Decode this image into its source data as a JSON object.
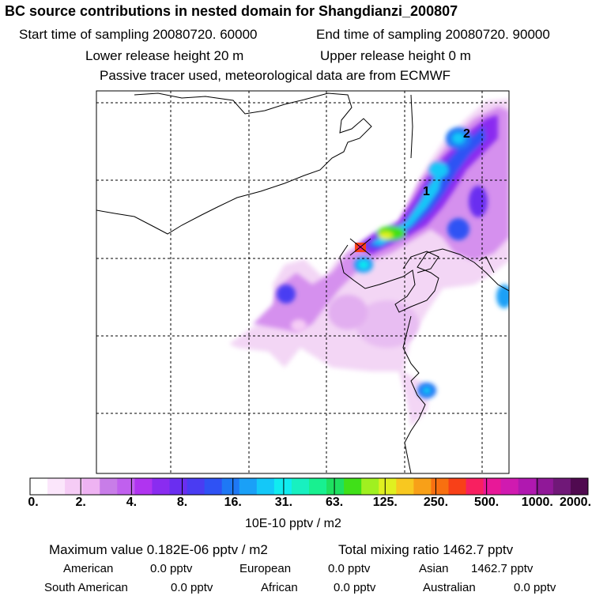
{
  "header": {
    "title": "BC  source contributions in nested domain for Shangdianzi_200807",
    "start_label": "Start time of sampling 20080720. 60000",
    "end_label": "End time of sampling 20080720. 90000",
    "lower_label": "Lower release height   20 m",
    "upper_label": "Upper release height    0 m",
    "note": "Passive tracer used, meteorological data are from ECMWF"
  },
  "map": {
    "markers": [
      "1",
      "2"
    ]
  },
  "colorbar": {
    "colors": [
      "#ffffff",
      "#fbe6fb",
      "#f5ccf5",
      "#eeb3f2",
      "#c87de8",
      "#c060ee",
      "#b034f0",
      "#8a2cf0",
      "#6a2ef0",
      "#4a3cf2",
      "#2f52f4",
      "#1e78f5",
      "#1aa0f7",
      "#14c8f8",
      "#10ecf0",
      "#18f0c0",
      "#18f090",
      "#1ee060",
      "#40e018",
      "#a0f020",
      "#e0f020",
      "#f8c820",
      "#f8a018",
      "#f87010",
      "#f84018",
      "#f82060",
      "#e81898",
      "#d01ab0",
      "#b018b0",
      "#901898",
      "#701878",
      "#500a50"
    ],
    "tick_labels": [
      "0.",
      "2.",
      "4.",
      "8.",
      "16.",
      "31.",
      "63.",
      "125.",
      "250.",
      "500.",
      "1000.",
      "2000."
    ],
    "units": "10E-10 pptv / m2"
  },
  "summary": {
    "max_value": "Maximum value  0.182E-06 pptv / m2",
    "total": "Total mixing ratio     1462.7 pptv",
    "american_label": "American",
    "american_value": "0.0 pptv",
    "european_label": "European",
    "european_value": "0.0 pptv",
    "asian_label": "Asian",
    "asian_value": "1462.7 pptv",
    "south_american_label": "South American",
    "south_american_value": "0.0 pptv",
    "african_label": "African",
    "african_value": "0.0 pptv",
    "australian_label": "Australian",
    "australian_value": "0.0 pptv"
  }
}
